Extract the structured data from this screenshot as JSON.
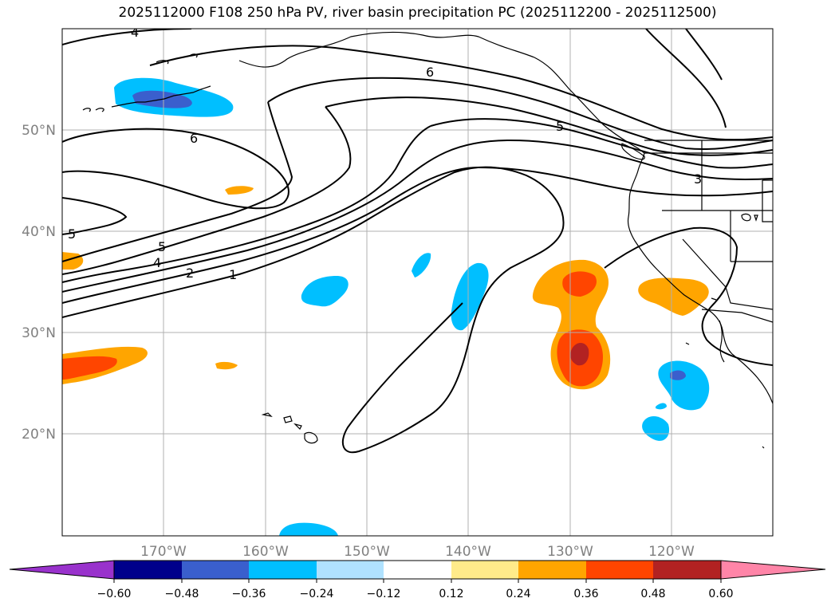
{
  "title": "2025112000 F108 250 hPa PV, river basin precipitation PC (2025112200 - 2025112500)",
  "map": {
    "lat_labels": [
      "50°N",
      "40°N",
      "30°N",
      "20°N"
    ],
    "lon_labels": [
      "170°W",
      "160°W",
      "150°W",
      "140°W",
      "130°W",
      "120°W"
    ],
    "pv_contour_labels": [
      "4",
      "6",
      "6",
      "5",
      "5",
      "4",
      "2",
      "1",
      "5",
      "3"
    ],
    "colors": {
      "coastline": "#000000",
      "contour": "#000000",
      "gridline": "#b0b0b0"
    }
  },
  "colorbar": {
    "tick_labels": [
      "−0.60",
      "−0.48",
      "−0.36",
      "−0.24",
      "−0.12",
      "0.12",
      "0.24",
      "0.36",
      "0.48",
      "0.60"
    ],
    "colors": [
      "#9932cc",
      "#00008b",
      "#3a5fcd",
      "#00bfff",
      "#b0e2ff",
      "#ffffff",
      "#ffeb8a",
      "#ffa500",
      "#ff4500",
      "#b22222",
      "#ff85a8"
    ]
  }
}
